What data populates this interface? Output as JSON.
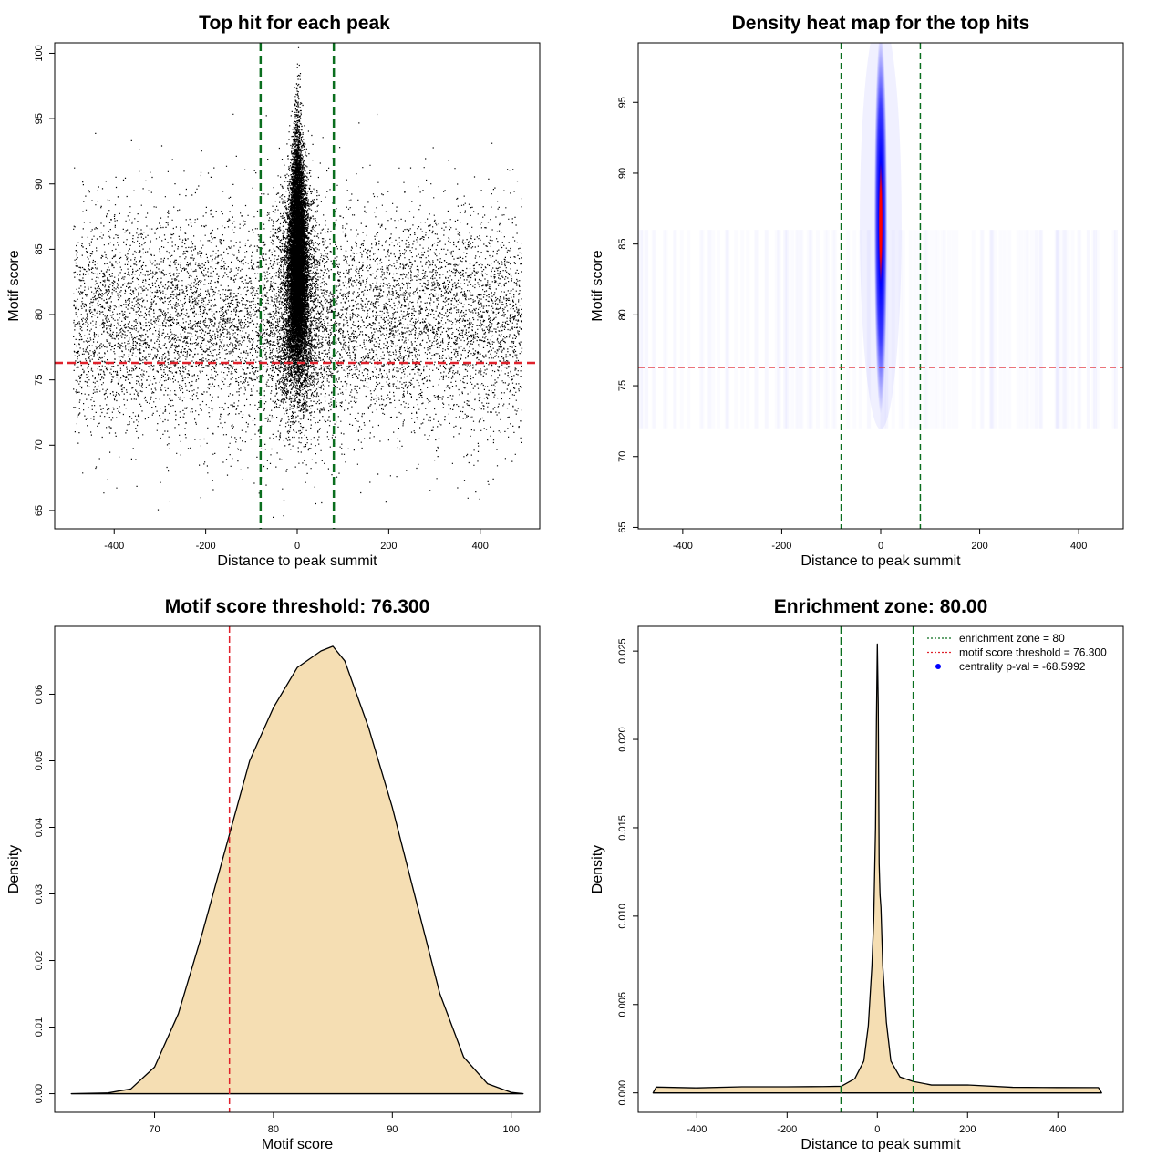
{
  "chart_data": [
    {
      "type": "scatter",
      "title": "Top hit for each peak",
      "xlabel": "Distance to peak summit",
      "ylabel": "Motif score",
      "xlim": [
        -530,
        530
      ],
      "ylim": [
        63.6,
        100.8
      ],
      "x_ticks": [
        -400,
        -200,
        0,
        200,
        400
      ],
      "y_ticks": [
        65,
        70,
        75,
        80,
        85,
        90,
        95,
        100
      ],
      "x_tick_labels": [
        "-400",
        "-200",
        "0",
        "200",
        "400"
      ],
      "y_tick_labels": [
        "65",
        "70",
        "75",
        "80",
        "85",
        "90",
        "95",
        "100"
      ],
      "background": {
        "x_range": [
          -490,
          490
        ],
        "mean": 79.5,
        "sd": 4.2
      },
      "central": {
        "mean": 83.5,
        "sd": 4.6,
        "x_sd": 10
      },
      "vlines": [
        -80,
        80
      ],
      "hline": 76.3,
      "vline_color": "#0a6e1e",
      "hline_color": "#e0212b"
    },
    {
      "type": "heatmap",
      "title": "Density heat map for the top hits",
      "xlabel": "Distance to peak summit",
      "ylabel": "Motif score",
      "xlim": [
        -490,
        490
      ],
      "ylim": [
        64.9,
        99.2
      ],
      "x_ticks": [
        -400,
        -200,
        0,
        200,
        400
      ],
      "y_ticks": [
        65,
        70,
        75,
        80,
        85,
        90,
        95
      ],
      "x_tick_labels": [
        "-400",
        "-200",
        "0",
        "200",
        "400"
      ],
      "y_tick_labels": [
        "65",
        "70",
        "75",
        "80",
        "85",
        "90",
        "95"
      ],
      "hotspot": {
        "x": 0,
        "y": 86.5,
        "x_sd": 6,
        "y_sd": 4.5
      },
      "color_scale": [
        "#ffffff",
        "#0000ff",
        "#ff0000"
      ],
      "vlines": [
        -80,
        80
      ],
      "hline": 76.3,
      "vline_color": "#0a6e1e",
      "hline_color": "#e0212b"
    },
    {
      "type": "area",
      "title": "Motif score threshold: 76.300",
      "xlabel": "Motif score",
      "ylabel": "Density",
      "xlim": [
        61.6,
        102.4
      ],
      "ylim": [
        -0.0028,
        0.0702
      ],
      "x_ticks": [
        70,
        80,
        90,
        100
      ],
      "y_ticks": [
        0,
        0.01,
        0.02,
        0.03,
        0.04,
        0.05,
        0.06
      ],
      "x_tick_labels": [
        "70",
        "80",
        "90",
        "100"
      ],
      "y_tick_labels": [
        "0.00",
        "0.01",
        "0.02",
        "0.03",
        "0.04",
        "0.05",
        "0.06"
      ],
      "x": [
        63,
        66,
        68,
        70,
        72,
        74,
        76,
        78,
        80,
        82,
        84,
        85,
        86,
        88,
        90,
        92,
        94,
        96,
        98,
        100,
        101
      ],
      "y": [
        0,
        0.0001,
        0.0007,
        0.004,
        0.012,
        0.024,
        0.037,
        0.05,
        0.058,
        0.064,
        0.0665,
        0.0672,
        0.065,
        0.055,
        0.043,
        0.029,
        0.015,
        0.0055,
        0.0015,
        0.0002,
        0
      ],
      "vline": 76.3,
      "vline_color": "#e0212b",
      "fill": "#f5deb3"
    },
    {
      "type": "area",
      "title": "Enrichment zone: 80.00",
      "xlabel": "Distance to peak summit",
      "ylabel": "Density",
      "xlim": [
        -530,
        545
      ],
      "ylim": [
        -0.0011,
        0.0264
      ],
      "x_ticks": [
        -400,
        -200,
        0,
        200,
        400
      ],
      "y_ticks": [
        0,
        0.005,
        0.01,
        0.015,
        0.02,
        0.025
      ],
      "x_tick_labels": [
        "-400",
        "-200",
        "0",
        "200",
        "400"
      ],
      "y_tick_labels": [
        "0.000",
        "0.005",
        "0.010",
        "0.015",
        "0.020",
        "0.025"
      ],
      "x": [
        -497,
        -490,
        -400,
        -300,
        -200,
        -120,
        -80,
        -50,
        -30,
        -20,
        -12,
        -8,
        -4,
        -2,
        0,
        2,
        4,
        6,
        8,
        12,
        20,
        30,
        50,
        80,
        120,
        200,
        300,
        400,
        490,
        497
      ],
      "y": [
        0,
        0.0003,
        0.0003,
        0.0003,
        0.0003,
        0.0004,
        0.0004,
        0.0008,
        0.0018,
        0.0038,
        0.0072,
        0.0098,
        0.015,
        0.021,
        0.0254,
        0.022,
        0.013,
        0.0112,
        0.0105,
        0.0072,
        0.004,
        0.0018,
        0.0009,
        0.0007,
        0.0005,
        0.0004,
        0.0003,
        0.0003,
        0.0003,
        0
      ],
      "vlines": [
        -80,
        80
      ],
      "vline_color": "#0a6e1e",
      "fill": "#f5deb3",
      "legend": [
        {
          "label": "enrichment zone = 80",
          "color": "#0a6e1e",
          "style": "dotted-line"
        },
        {
          "label": "motif score threshold = 76.300",
          "color": "#e0212b",
          "style": "dotted-line"
        },
        {
          "label": "centrality p-val = -68.5992",
          "color": "#0000ff",
          "style": "dot"
        }
      ],
      "legend_position": "top-right"
    }
  ]
}
